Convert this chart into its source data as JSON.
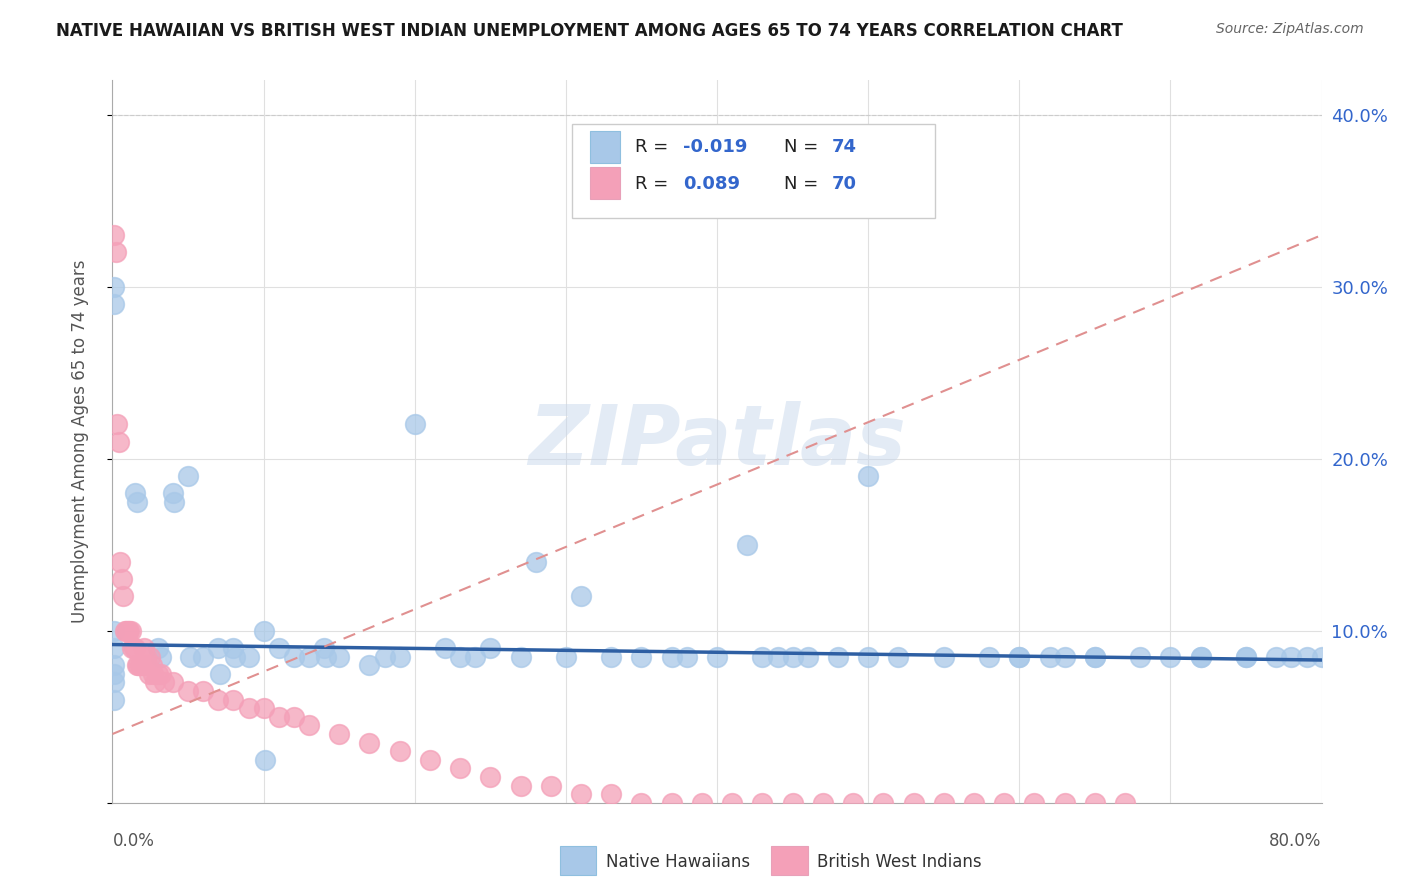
{
  "title": "NATIVE HAWAIIAN VS BRITISH WEST INDIAN UNEMPLOYMENT AMONG AGES 65 TO 74 YEARS CORRELATION CHART",
  "source": "Source: ZipAtlas.com",
  "ylabel": "Unemployment Among Ages 65 to 74 years",
  "color_blue": "#A8C8E8",
  "color_pink": "#F4A0B8",
  "color_blue_dark": "#2E5FA3",
  "color_pink_trend": "#E09090",
  "watermark": "ZIPatlas",
  "xlim": [
    0.0,
    0.8
  ],
  "ylim": [
    0.0,
    0.42
  ],
  "background_color": "#ffffff",
  "grid_color": "#e0e0e0",
  "blue_x": [
    0.001,
    0.001,
    0.001,
    0.001,
    0.001,
    0.001,
    0.001,
    0.001,
    0.015,
    0.016,
    0.03,
    0.032,
    0.04,
    0.041,
    0.05,
    0.051,
    0.06,
    0.07,
    0.071,
    0.08,
    0.081,
    0.09,
    0.1,
    0.101,
    0.11,
    0.12,
    0.13,
    0.14,
    0.141,
    0.15,
    0.17,
    0.18,
    0.19,
    0.2,
    0.22,
    0.23,
    0.24,
    0.25,
    0.27,
    0.28,
    0.3,
    0.31,
    0.33,
    0.35,
    0.37,
    0.38,
    0.4,
    0.43,
    0.45,
    0.48,
    0.5,
    0.52,
    0.55,
    0.58,
    0.6,
    0.62,
    0.65,
    0.68,
    0.72,
    0.75,
    0.78,
    0.5,
    0.6,
    0.63,
    0.65,
    0.7,
    0.72,
    0.75,
    0.77,
    0.79,
    0.8,
    0.42,
    0.44,
    0.46
  ],
  "blue_y": [
    0.3,
    0.29,
    0.1,
    0.09,
    0.08,
    0.075,
    0.07,
    0.06,
    0.18,
    0.175,
    0.09,
    0.085,
    0.18,
    0.175,
    0.19,
    0.085,
    0.085,
    0.09,
    0.075,
    0.09,
    0.085,
    0.085,
    0.1,
    0.025,
    0.09,
    0.085,
    0.085,
    0.09,
    0.085,
    0.085,
    0.08,
    0.085,
    0.085,
    0.22,
    0.09,
    0.085,
    0.085,
    0.09,
    0.085,
    0.14,
    0.085,
    0.12,
    0.085,
    0.085,
    0.085,
    0.085,
    0.085,
    0.085,
    0.085,
    0.085,
    0.085,
    0.085,
    0.085,
    0.085,
    0.085,
    0.085,
    0.085,
    0.085,
    0.085,
    0.085,
    0.085,
    0.19,
    0.085,
    0.085,
    0.085,
    0.085,
    0.085,
    0.085,
    0.085,
    0.085,
    0.085,
    0.15,
    0.085,
    0.085
  ],
  "pink_x": [
    0.001,
    0.002,
    0.003,
    0.004,
    0.005,
    0.006,
    0.007,
    0.008,
    0.009,
    0.01,
    0.011,
    0.012,
    0.013,
    0.014,
    0.015,
    0.016,
    0.017,
    0.018,
    0.019,
    0.02,
    0.021,
    0.022,
    0.023,
    0.024,
    0.025,
    0.026,
    0.027,
    0.028,
    0.03,
    0.032,
    0.034,
    0.04,
    0.05,
    0.06,
    0.07,
    0.08,
    0.09,
    0.1,
    0.11,
    0.12,
    0.13,
    0.15,
    0.17,
    0.19,
    0.21,
    0.23,
    0.25,
    0.27,
    0.29,
    0.31,
    0.33,
    0.35,
    0.37,
    0.39,
    0.41,
    0.43,
    0.45,
    0.47,
    0.49,
    0.51,
    0.53,
    0.55,
    0.57,
    0.59,
    0.61,
    0.63,
    0.65,
    0.67
  ],
  "pink_y": [
    0.33,
    0.32,
    0.22,
    0.21,
    0.14,
    0.13,
    0.12,
    0.1,
    0.1,
    0.1,
    0.1,
    0.1,
    0.09,
    0.09,
    0.09,
    0.08,
    0.08,
    0.08,
    0.08,
    0.08,
    0.09,
    0.085,
    0.08,
    0.075,
    0.085,
    0.08,
    0.075,
    0.07,
    0.075,
    0.075,
    0.07,
    0.07,
    0.065,
    0.065,
    0.06,
    0.06,
    0.055,
    0.055,
    0.05,
    0.05,
    0.045,
    0.04,
    0.035,
    0.03,
    0.025,
    0.02,
    0.015,
    0.01,
    0.01,
    0.005,
    0.005,
    0.0,
    0.0,
    0.0,
    0.0,
    0.0,
    0.0,
    0.0,
    0.0,
    0.0,
    0.0,
    0.0,
    0.0,
    0.0,
    0.0,
    0.0,
    0.0,
    0.0
  ]
}
